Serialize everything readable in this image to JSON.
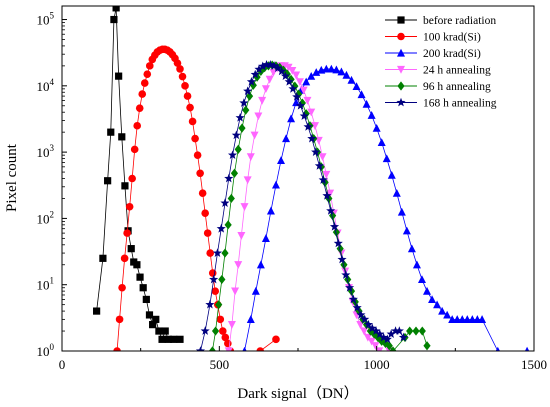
{
  "chart_data": {
    "type": "scatter",
    "xlabel": "Dark signal（DN）",
    "ylabel": "Pixel count",
    "xlim": [
      0,
      1500
    ],
    "ylim": [
      1,
      160000
    ],
    "yscale": "log",
    "grid": false,
    "legend_position": "top-right",
    "x_ticks": [
      {
        "value": 0,
        "label": "0"
      },
      {
        "value": 500,
        "label": "500"
      },
      {
        "value": 1000,
        "label": "1000"
      },
      {
        "value": 1500,
        "label": "1500"
      }
    ],
    "y_ticks": [
      {
        "value": 1,
        "base": "10",
        "exp": "0"
      },
      {
        "value": 10,
        "base": "10",
        "exp": "1"
      },
      {
        "value": 100,
        "base": "10",
        "exp": "2"
      },
      {
        "value": 1000,
        "base": "10",
        "exp": "3"
      },
      {
        "value": 10000,
        "base": "10",
        "exp": "4"
      },
      {
        "value": 100000,
        "base": "10",
        "exp": "5"
      }
    ],
    "series": [
      {
        "name": "before radiation",
        "color": "#000000",
        "marker": "square",
        "points": [
          [
            110,
            4
          ],
          [
            130,
            25
          ],
          [
            145,
            370
          ],
          [
            155,
            2000
          ],
          [
            165,
            100000
          ],
          [
            172,
            150000
          ],
          [
            180,
            14000
          ],
          [
            190,
            1700
          ],
          [
            200,
            310
          ],
          [
            210,
            65
          ],
          [
            220,
            35
          ],
          [
            228,
            22
          ],
          [
            238,
            20
          ],
          [
            248,
            13
          ],
          [
            258,
            9
          ],
          [
            268,
            6
          ],
          [
            278,
            3.5
          ],
          [
            288,
            2.5
          ],
          [
            298,
            3
          ],
          [
            308,
            2
          ],
          [
            318,
            1.5
          ],
          [
            328,
            2
          ],
          [
            338,
            1.5
          ],
          [
            355,
            1.5
          ],
          [
            375,
            1.5
          ]
        ]
      },
      {
        "name": "100 krad(Si)",
        "color": "#ff0000",
        "marker": "circle",
        "points": [
          [
            175,
            1
          ],
          [
            183,
            3
          ],
          [
            191,
            9
          ],
          [
            199,
            25
          ],
          [
            207,
            60
          ],
          [
            215,
            150
          ],
          [
            223,
            400
          ],
          [
            231,
            1100
          ],
          [
            239,
            2500
          ],
          [
            247,
            4600
          ],
          [
            255,
            7500
          ],
          [
            263,
            11000
          ],
          [
            271,
            15000
          ],
          [
            279,
            20000
          ],
          [
            287,
            25000
          ],
          [
            295,
            29000
          ],
          [
            303,
            32500
          ],
          [
            311,
            34500
          ],
          [
            319,
            35500
          ],
          [
            327,
            35500
          ],
          [
            335,
            34500
          ],
          [
            343,
            32500
          ],
          [
            351,
            29500
          ],
          [
            359,
            26000
          ],
          [
            367,
            22000
          ],
          [
            375,
            18000
          ],
          [
            383,
            13800
          ],
          [
            391,
            10000
          ],
          [
            399,
            7000
          ],
          [
            407,
            4700
          ],
          [
            415,
            2900
          ],
          [
            423,
            1600
          ],
          [
            431,
            900
          ],
          [
            439,
            480
          ],
          [
            447,
            240
          ],
          [
            455,
            120
          ],
          [
            463,
            60
          ],
          [
            471,
            30
          ],
          [
            479,
            15
          ],
          [
            487,
            8
          ],
          [
            495,
            5
          ],
          [
            503,
            3
          ],
          [
            511,
            2
          ],
          [
            519,
            1.6
          ],
          [
            527,
            1.3
          ],
          [
            535,
            1
          ],
          [
            630,
            1
          ],
          [
            680,
            1.5
          ]
        ]
      },
      {
        "name": "200 krad(Si)",
        "color": "#0000ff",
        "marker": "triangle-up",
        "points": [
          [
            580,
            1
          ],
          [
            600,
            3
          ],
          [
            616,
            8
          ],
          [
            632,
            20
          ],
          [
            648,
            50
          ],
          [
            664,
            130
          ],
          [
            680,
            320
          ],
          [
            696,
            750
          ],
          [
            712,
            1600
          ],
          [
            728,
            3200
          ],
          [
            744,
            5600
          ],
          [
            760,
            8600
          ],
          [
            776,
            11500
          ],
          [
            792,
            14000
          ],
          [
            808,
            16000
          ],
          [
            824,
            17300
          ],
          [
            840,
            18000
          ],
          [
            856,
            18000
          ],
          [
            872,
            17500
          ],
          [
            888,
            16300
          ],
          [
            904,
            14500
          ],
          [
            920,
            12200
          ],
          [
            936,
            9800
          ],
          [
            952,
            7400
          ],
          [
            968,
            5300
          ],
          [
            984,
            3600
          ],
          [
            1000,
            2300
          ],
          [
            1016,
            1400
          ],
          [
            1032,
            800
          ],
          [
            1048,
            450
          ],
          [
            1064,
            240
          ],
          [
            1080,
            125
          ],
          [
            1096,
            65
          ],
          [
            1112,
            35
          ],
          [
            1128,
            20
          ],
          [
            1144,
            12
          ],
          [
            1160,
            8
          ],
          [
            1176,
            6
          ],
          [
            1192,
            5
          ],
          [
            1208,
            4
          ],
          [
            1224,
            3.5
          ],
          [
            1240,
            3
          ],
          [
            1256,
            3
          ],
          [
            1272,
            3
          ],
          [
            1288,
            3
          ],
          [
            1304,
            3
          ],
          [
            1320,
            3
          ],
          [
            1335,
            3
          ],
          [
            1385,
            1
          ],
          [
            1478,
            1
          ]
        ]
      },
      {
        "name": "24 h annealing",
        "color": "#ff66ff",
        "marker": "triangle-down",
        "points": [
          [
            530,
            1
          ],
          [
            540,
            2.5
          ],
          [
            550,
            8
          ],
          [
            560,
            20
          ],
          [
            570,
            55
          ],
          [
            580,
            150
          ],
          [
            590,
            380
          ],
          [
            600,
            850
          ],
          [
            612,
            1800
          ],
          [
            624,
            3500
          ],
          [
            636,
            6000
          ],
          [
            648,
            9000
          ],
          [
            660,
            12500
          ],
          [
            672,
            16000
          ],
          [
            684,
            18500
          ],
          [
            696,
            20000
          ],
          [
            708,
            20000
          ],
          [
            720,
            19000
          ],
          [
            732,
            17000
          ],
          [
            744,
            14500
          ],
          [
            756,
            11500
          ],
          [
            768,
            8600
          ],
          [
            780,
            6000
          ],
          [
            792,
            4000
          ],
          [
            804,
            2500
          ],
          [
            816,
            1500
          ],
          [
            828,
            850
          ],
          [
            840,
            460
          ],
          [
            852,
            240
          ],
          [
            864,
            120
          ],
          [
            876,
            60
          ],
          [
            888,
            30
          ],
          [
            900,
            16
          ],
          [
            912,
            9
          ],
          [
            924,
            5.5
          ],
          [
            936,
            3.5
          ],
          [
            948,
            2.5
          ],
          [
            960,
            2
          ],
          [
            972,
            1.6
          ],
          [
            984,
            1.4
          ],
          [
            996,
            1.2
          ],
          [
            1008,
            1
          ],
          [
            1040,
            1
          ]
        ]
      },
      {
        "name": "96 h annealing",
        "color": "#008000",
        "marker": "diamond",
        "points": [
          [
            478,
            1
          ],
          [
            488,
            2
          ],
          [
            498,
            5
          ],
          [
            508,
            12
          ],
          [
            518,
            30
          ],
          [
            528,
            80
          ],
          [
            538,
            200
          ],
          [
            548,
            480
          ],
          [
            560,
            1100
          ],
          [
            572,
            2300
          ],
          [
            584,
            4300
          ],
          [
            596,
            7000
          ],
          [
            608,
            10200
          ],
          [
            620,
            13500
          ],
          [
            632,
            16500
          ],
          [
            644,
            18800
          ],
          [
            656,
            20000
          ],
          [
            668,
            20500
          ],
          [
            680,
            20000
          ],
          [
            692,
            19000
          ],
          [
            704,
            17200
          ],
          [
            716,
            15000
          ],
          [
            728,
            12500
          ],
          [
            740,
            9900
          ],
          [
            752,
            7500
          ],
          [
            764,
            5500
          ],
          [
            776,
            3800
          ],
          [
            788,
            2500
          ],
          [
            800,
            1600
          ],
          [
            812,
            1000
          ],
          [
            824,
            600
          ],
          [
            836,
            350
          ],
          [
            848,
            200
          ],
          [
            860,
            110
          ],
          [
            872,
            62
          ],
          [
            884,
            35
          ],
          [
            896,
            20
          ],
          [
            908,
            12
          ],
          [
            920,
            8
          ],
          [
            932,
            5.5
          ],
          [
            944,
            4
          ],
          [
            956,
            3
          ],
          [
            968,
            2.5
          ],
          [
            980,
            2
          ],
          [
            992,
            1.8
          ],
          [
            1004,
            1.6
          ],
          [
            1016,
            1.4
          ],
          [
            1028,
            1.3
          ],
          [
            1040,
            1.2
          ],
          [
            1052,
            1
          ],
          [
            1090,
            1.6
          ],
          [
            1105,
            2
          ],
          [
            1125,
            2
          ],
          [
            1145,
            2
          ],
          [
            1160,
            1.2
          ]
        ]
      },
      {
        "name": "168 h annealing",
        "color": "#000080",
        "marker": "star",
        "points": [
          [
            440,
            1
          ],
          [
            455,
            2
          ],
          [
            470,
            5
          ],
          [
            482,
            12
          ],
          [
            494,
            30
          ],
          [
            506,
            70
          ],
          [
            518,
            170
          ],
          [
            530,
            400
          ],
          [
            542,
            900
          ],
          [
            554,
            1800
          ],
          [
            566,
            3300
          ],
          [
            578,
            5500
          ],
          [
            590,
            8300
          ],
          [
            602,
            11500
          ],
          [
            614,
            14800
          ],
          [
            626,
            17700
          ],
          [
            638,
            19700
          ],
          [
            650,
            20800
          ],
          [
            662,
            20800
          ],
          [
            674,
            20000
          ],
          [
            686,
            18500
          ],
          [
            698,
            16500
          ],
          [
            710,
            14000
          ],
          [
            722,
            11500
          ],
          [
            734,
            9000
          ],
          [
            746,
            6800
          ],
          [
            758,
            5000
          ],
          [
            770,
            3500
          ],
          [
            782,
            2400
          ],
          [
            794,
            1600
          ],
          [
            806,
            1000
          ],
          [
            818,
            620
          ],
          [
            830,
            380
          ],
          [
            842,
            220
          ],
          [
            854,
            130
          ],
          [
            866,
            75
          ],
          [
            878,
            42
          ],
          [
            890,
            24
          ],
          [
            902,
            14
          ],
          [
            914,
            9
          ],
          [
            926,
            6
          ],
          [
            938,
            4.5
          ],
          [
            950,
            3.5
          ],
          [
            962,
            3
          ],
          [
            974,
            2.5
          ],
          [
            986,
            2.2
          ],
          [
            998,
            2
          ],
          [
            1010,
            1.8
          ],
          [
            1022,
            1.6
          ],
          [
            1034,
            1.5
          ],
          [
            1046,
            1.8
          ],
          [
            1060,
            2
          ],
          [
            1072,
            2
          ],
          [
            1085,
            1.6
          ]
        ]
      }
    ]
  }
}
